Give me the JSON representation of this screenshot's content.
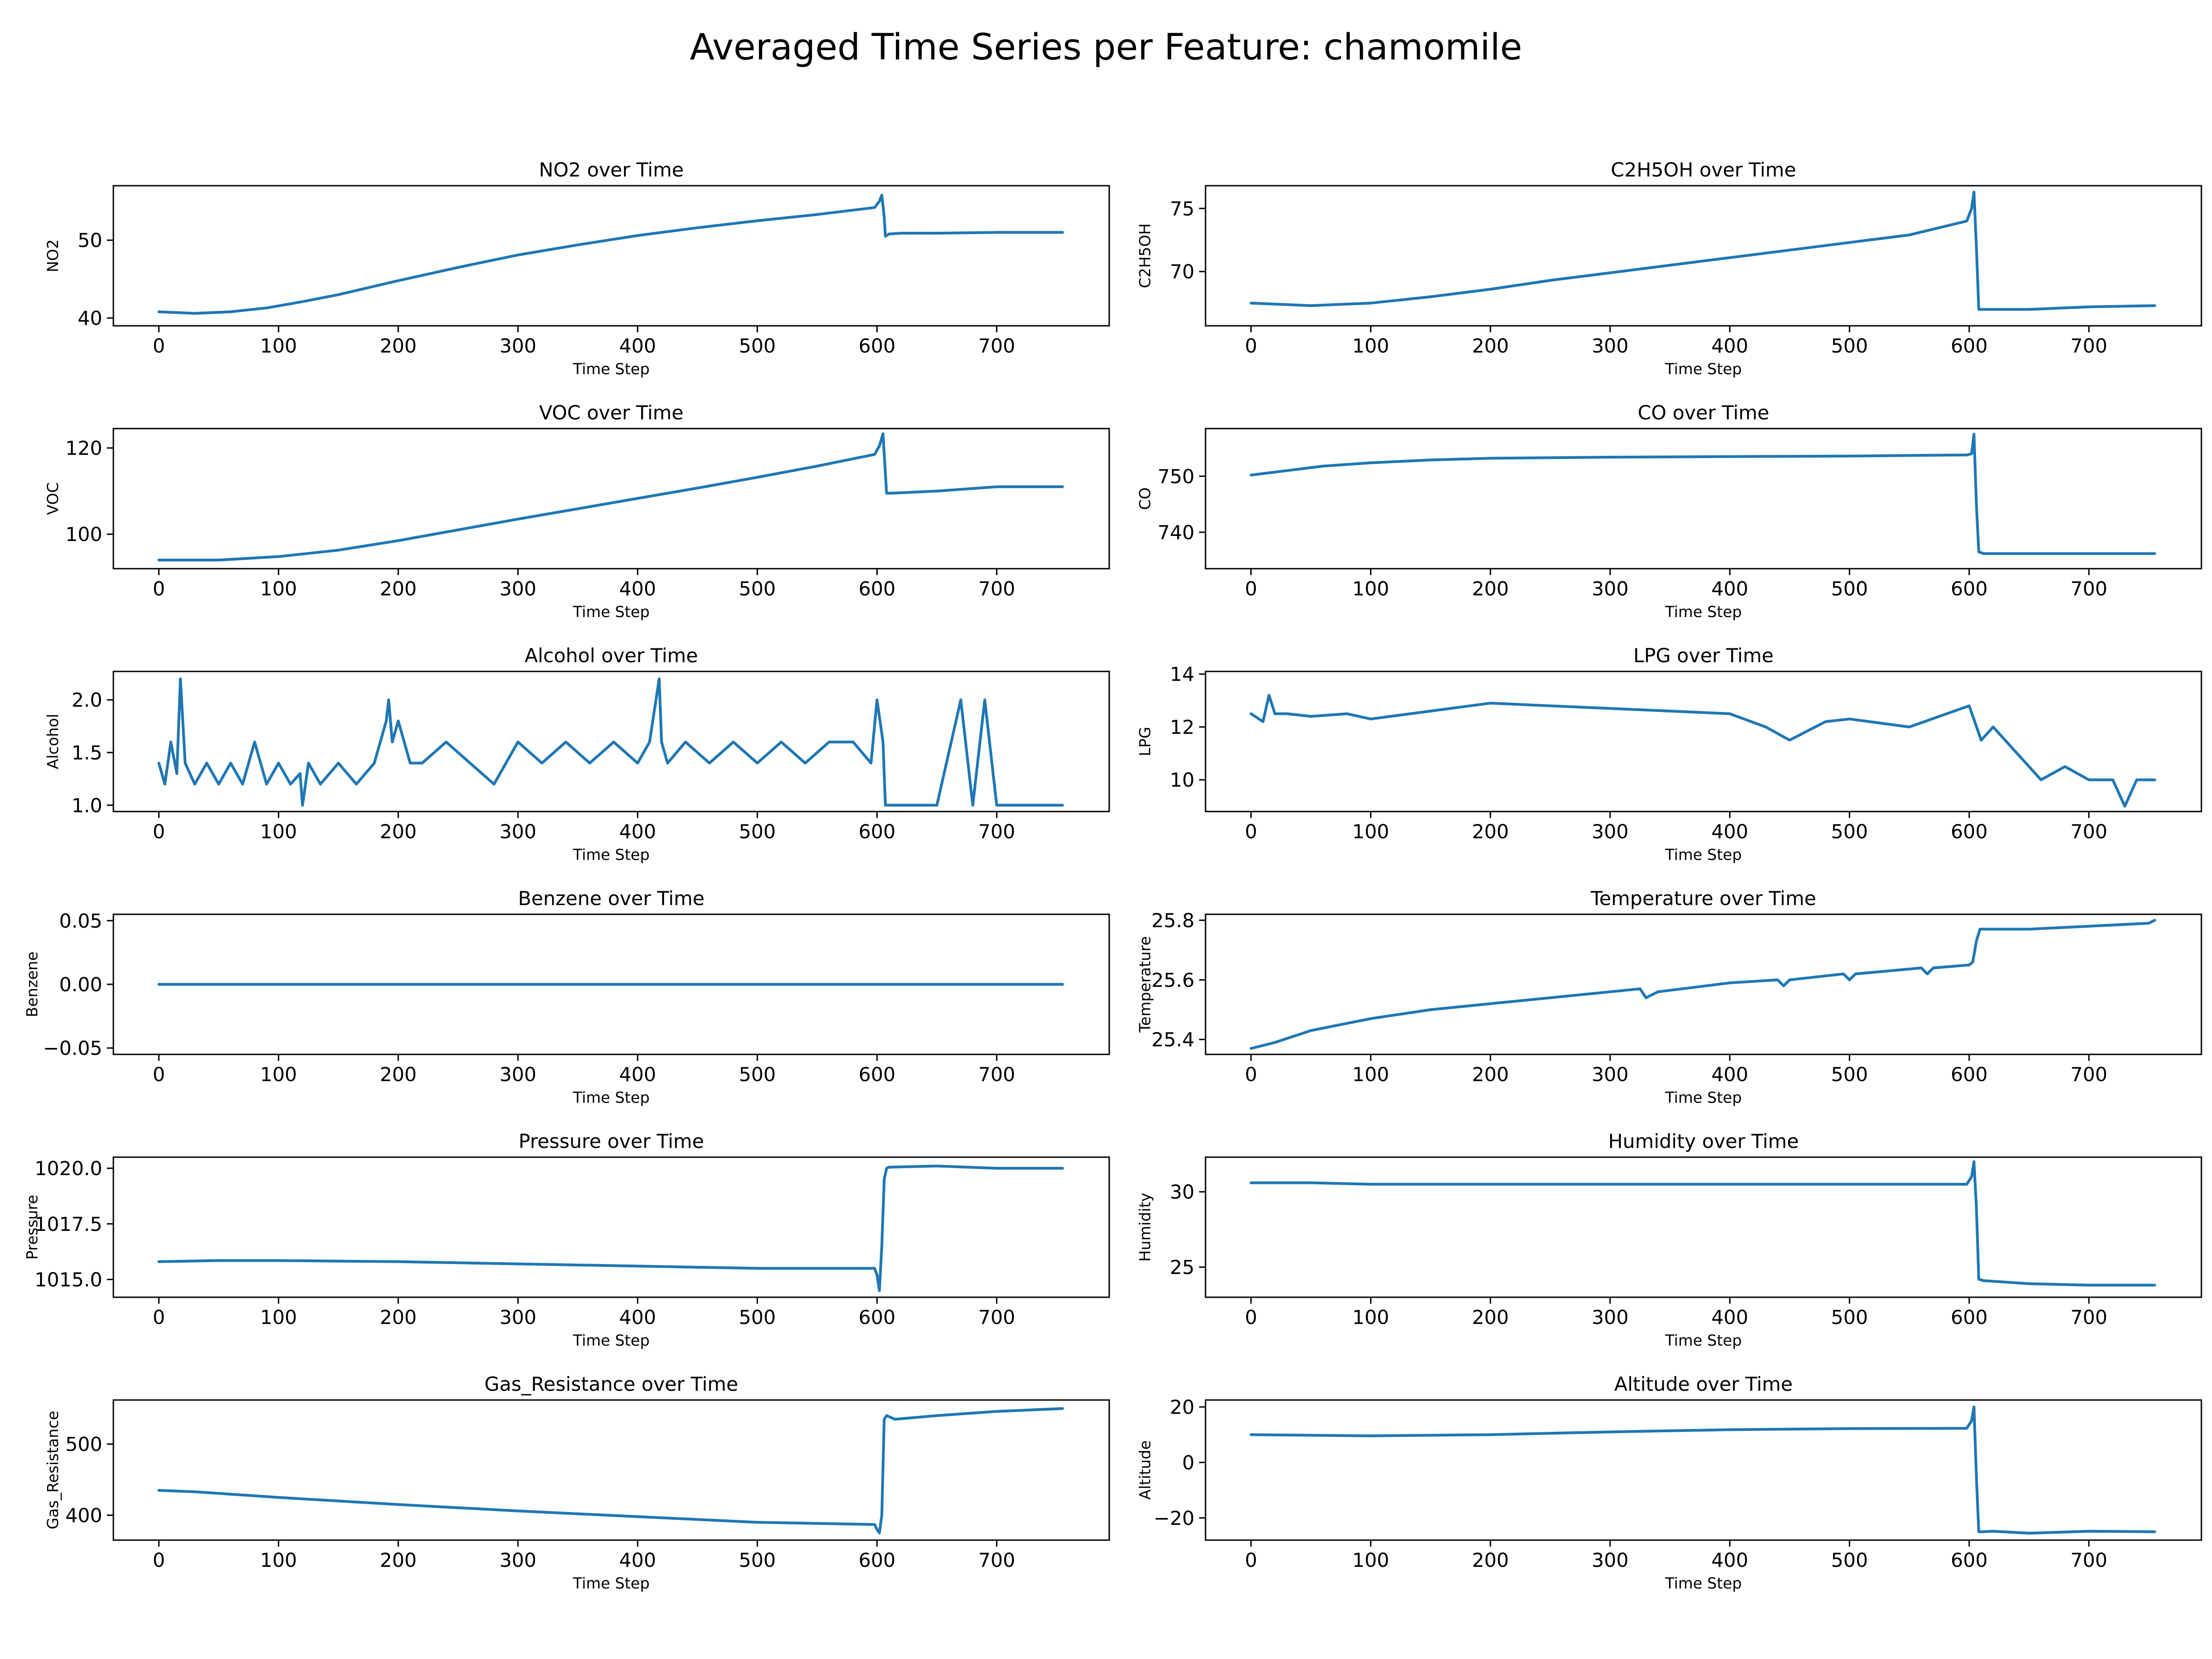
{
  "figure_title": "Averaged Time Series per Feature: chamomile",
  "line_color": "#1f77b4",
  "chart_data": [
    {
      "type": "line",
      "title": "NO2 over Time",
      "xlabel": "Time Step",
      "ylabel": "NO2",
      "xlim": [
        -38,
        794
      ],
      "ylim": [
        39,
        57
      ],
      "xticks": [
        0,
        100,
        200,
        300,
        400,
        500,
        600,
        700
      ],
      "yticks": [
        {
          "v": 40,
          "label": "40"
        },
        {
          "v": 50,
          "label": "50"
        }
      ],
      "x": [
        0,
        30,
        60,
        90,
        120,
        150,
        200,
        250,
        300,
        350,
        400,
        450,
        500,
        550,
        598,
        602,
        604,
        606,
        607,
        610,
        620,
        650,
        700,
        755
      ],
      "y": [
        40.8,
        40.6,
        40.8,
        41.3,
        42.1,
        43.0,
        44.8,
        46.5,
        48.1,
        49.4,
        50.6,
        51.6,
        52.5,
        53.3,
        54.2,
        55.0,
        55.8,
        53.0,
        50.5,
        50.8,
        50.9,
        50.9,
        51.0,
        51.0
      ]
    },
    {
      "type": "line",
      "title": "C2H5OH over Time",
      "xlabel": "Time Step",
      "ylabel": "C2H5OH",
      "xlim": [
        -38,
        794
      ],
      "ylim": [
        65.7,
        76.8
      ],
      "xticks": [
        0,
        100,
        200,
        300,
        400,
        500,
        600,
        700
      ],
      "yticks": [
        {
          "v": 70,
          "label": "70"
        },
        {
          "v": 75,
          "label": "75"
        }
      ],
      "x": [
        0,
        50,
        100,
        150,
        200,
        250,
        300,
        350,
        400,
        450,
        500,
        550,
        598,
        602,
        604,
        606,
        608,
        615,
        650,
        700,
        755
      ],
      "y": [
        67.5,
        67.3,
        67.5,
        68.0,
        68.6,
        69.3,
        69.9,
        70.5,
        71.1,
        71.7,
        72.3,
        72.9,
        74.0,
        75.0,
        76.3,
        72.0,
        67.0,
        67.0,
        67.0,
        67.2,
        67.3
      ]
    },
    {
      "type": "line",
      "title": "VOC over Time",
      "xlabel": "Time Step",
      "ylabel": "VOC",
      "xlim": [
        -38,
        794
      ],
      "ylim": [
        92,
        124.5
      ],
      "xticks": [
        0,
        100,
        200,
        300,
        400,
        500,
        600,
        700
      ],
      "yticks": [
        {
          "v": 100,
          "label": "100"
        },
        {
          "v": 120,
          "label": "120"
        }
      ],
      "x": [
        0,
        50,
        100,
        150,
        200,
        250,
        300,
        350,
        400,
        450,
        500,
        550,
        598,
        602,
        605,
        608,
        612,
        650,
        700,
        755
      ],
      "y": [
        94.0,
        94.0,
        94.8,
        96.3,
        98.5,
        101.0,
        103.5,
        105.9,
        108.3,
        110.7,
        113.2,
        115.8,
        118.5,
        120.5,
        123.3,
        109.5,
        109.5,
        110.0,
        111.0,
        111.0
      ]
    },
    {
      "type": "line",
      "title": "CO over Time",
      "xlabel": "Time Step",
      "ylabel": "CO",
      "xlim": [
        -38,
        794
      ],
      "ylim": [
        733.5,
        758.5
      ],
      "xticks": [
        0,
        100,
        200,
        300,
        400,
        500,
        600,
        700
      ],
      "yticks": [
        {
          "v": 740,
          "label": "740"
        },
        {
          "v": 750,
          "label": "750"
        }
      ],
      "x": [
        0,
        30,
        60,
        100,
        150,
        200,
        300,
        400,
        500,
        598,
        602,
        604,
        606,
        608,
        612,
        650,
        700,
        755
      ],
      "y": [
        750.2,
        751.0,
        751.8,
        752.4,
        752.9,
        753.2,
        753.4,
        753.5,
        753.6,
        753.8,
        754.0,
        757.5,
        745.0,
        736.5,
        736.2,
        736.2,
        736.2,
        736.2
      ]
    },
    {
      "type": "line",
      "title": "Alcohol over Time",
      "xlabel": "Time Step",
      "ylabel": "Alcohol",
      "xlim": [
        -38,
        794
      ],
      "ylim": [
        0.94,
        2.27
      ],
      "xticks": [
        0,
        100,
        200,
        300,
        400,
        500,
        600,
        700
      ],
      "yticks": [
        {
          "v": 1.0,
          "label": "1.0"
        },
        {
          "v": 1.5,
          "label": "1.5"
        },
        {
          "v": 2.0,
          "label": "2.0"
        }
      ],
      "x": [
        0,
        5,
        10,
        15,
        18,
        22,
        30,
        40,
        50,
        60,
        70,
        80,
        90,
        100,
        110,
        118,
        120,
        125,
        135,
        150,
        165,
        180,
        190,
        192,
        195,
        200,
        210,
        220,
        240,
        260,
        280,
        300,
        320,
        340,
        360,
        380,
        400,
        410,
        418,
        420,
        425,
        440,
        460,
        480,
        500,
        520,
        540,
        560,
        580,
        595,
        600,
        605,
        607,
        650,
        670,
        680,
        690,
        700,
        755
      ],
      "y": [
        1.4,
        1.2,
        1.6,
        1.3,
        2.2,
        1.4,
        1.2,
        1.4,
        1.2,
        1.4,
        1.2,
        1.6,
        1.2,
        1.4,
        1.2,
        1.3,
        1.0,
        1.4,
        1.2,
        1.4,
        1.2,
        1.4,
        1.8,
        2.0,
        1.6,
        1.8,
        1.4,
        1.4,
        1.6,
        1.4,
        1.2,
        1.6,
        1.4,
        1.6,
        1.4,
        1.6,
        1.4,
        1.6,
        2.2,
        1.6,
        1.4,
        1.6,
        1.4,
        1.6,
        1.4,
        1.6,
        1.4,
        1.6,
        1.6,
        1.4,
        2.0,
        1.6,
        1.0,
        1.0,
        2.0,
        1.0,
        2.0,
        1.0,
        1.0
      ]
    },
    {
      "type": "line",
      "title": "LPG over Time",
      "xlabel": "Time Step",
      "ylabel": "LPG",
      "xlim": [
        -38,
        794
      ],
      "ylim": [
        8.8,
        14.1
      ],
      "xticks": [
        0,
        100,
        200,
        300,
        400,
        500,
        600,
        700
      ],
      "yticks": [
        {
          "v": 10,
          "label": "10"
        },
        {
          "v": 12,
          "label": "12"
        },
        {
          "v": 14,
          "label": "14"
        }
      ],
      "x": [
        0,
        10,
        15,
        20,
        30,
        50,
        80,
        100,
        150,
        200,
        250,
        300,
        350,
        400,
        430,
        450,
        480,
        500,
        550,
        600,
        610,
        620,
        640,
        650,
        660,
        680,
        700,
        720,
        730,
        740,
        755
      ],
      "y": [
        12.5,
        12.2,
        13.2,
        12.5,
        12.5,
        12.4,
        12.5,
        12.3,
        12.6,
        12.9,
        12.8,
        12.7,
        12.6,
        12.5,
        12.0,
        11.5,
        12.2,
        12.3,
        12.0,
        12.8,
        11.5,
        12.0,
        11.0,
        10.5,
        10.0,
        10.5,
        10.0,
        10.0,
        9.0,
        10.0,
        10.0
      ]
    },
    {
      "type": "line",
      "title": "Benzene over Time",
      "xlabel": "Time Step",
      "ylabel": "Benzene",
      "xlim": [
        -38,
        794
      ],
      "ylim": [
        -0.055,
        0.055
      ],
      "xticks": [
        0,
        100,
        200,
        300,
        400,
        500,
        600,
        700
      ],
      "yticks": [
        {
          "v": -0.05,
          "label": "−0.05"
        },
        {
          "v": 0.0,
          "label": "0.00"
        },
        {
          "v": 0.05,
          "label": "0.05"
        }
      ],
      "x": [
        0,
        755
      ],
      "y": [
        0.0,
        0.0
      ]
    },
    {
      "type": "line",
      "title": "Temperature over Time",
      "xlabel": "Time Step",
      "ylabel": "Temperature",
      "xlim": [
        -38,
        794
      ],
      "ylim": [
        25.35,
        25.82
      ],
      "xticks": [
        0,
        100,
        200,
        300,
        400,
        500,
        600,
        700
      ],
      "yticks": [
        {
          "v": 25.4,
          "label": "25.4"
        },
        {
          "v": 25.6,
          "label": "25.6"
        },
        {
          "v": 25.8,
          "label": "25.8"
        }
      ],
      "x": [
        0,
        20,
        50,
        100,
        150,
        200,
        250,
        300,
        325,
        330,
        340,
        400,
        440,
        445,
        450,
        495,
        500,
        505,
        560,
        565,
        570,
        600,
        603,
        606,
        609,
        612,
        650,
        700,
        750,
        755
      ],
      "y": [
        25.37,
        25.39,
        25.43,
        25.47,
        25.5,
        25.52,
        25.54,
        25.56,
        25.57,
        25.54,
        25.56,
        25.59,
        25.6,
        25.58,
        25.6,
        25.62,
        25.6,
        25.62,
        25.64,
        25.62,
        25.64,
        25.65,
        25.66,
        25.73,
        25.77,
        25.77,
        25.77,
        25.78,
        25.79,
        25.8
      ]
    },
    {
      "type": "line",
      "title": "Pressure over Time",
      "xlabel": "Time Step",
      "ylabel": "Pressure",
      "xlim": [
        -38,
        794
      ],
      "ylim": [
        1014.2,
        1020.5
      ],
      "xticks": [
        0,
        100,
        200,
        300,
        400,
        500,
        600,
        700
      ],
      "yticks": [
        {
          "v": 1015.0,
          "label": "1015.0"
        },
        {
          "v": 1017.5,
          "label": "1017.5"
        },
        {
          "v": 1020.0,
          "label": "1020.0"
        }
      ],
      "x": [
        0,
        50,
        100,
        200,
        300,
        400,
        500,
        598,
        600,
        602,
        604,
        606,
        608,
        610,
        650,
        700,
        755
      ],
      "y": [
        1015.8,
        1015.85,
        1015.85,
        1015.8,
        1015.7,
        1015.6,
        1015.5,
        1015.5,
        1015.2,
        1014.5,
        1016.5,
        1019.5,
        1020.0,
        1020.05,
        1020.1,
        1020.0,
        1020.0
      ]
    },
    {
      "type": "line",
      "title": "Humidity over Time",
      "xlabel": "Time Step",
      "ylabel": "Humidity",
      "xlim": [
        -38,
        794
      ],
      "ylim": [
        23.0,
        32.3
      ],
      "xticks": [
        0,
        100,
        200,
        300,
        400,
        500,
        600,
        700
      ],
      "yticks": [
        {
          "v": 25,
          "label": "25"
        },
        {
          "v": 30,
          "label": "30"
        }
      ],
      "x": [
        0,
        50,
        100,
        200,
        300,
        400,
        500,
        598,
        602,
        604,
        606,
        608,
        612,
        650,
        700,
        755
      ],
      "y": [
        30.6,
        30.6,
        30.5,
        30.5,
        30.5,
        30.5,
        30.5,
        30.5,
        31.0,
        32.0,
        29.0,
        24.2,
        24.1,
        23.9,
        23.8,
        23.8
      ]
    },
    {
      "type": "line",
      "title": "Gas_Resistance over Time",
      "xlabel": "Time Step",
      "ylabel": "Gas_Resistance",
      "xlim": [
        -38,
        794
      ],
      "ylim": [
        365,
        562
      ],
      "xticks": [
        0,
        100,
        200,
        300,
        400,
        500,
        600,
        700
      ],
      "yticks": [
        {
          "v": 400,
          "label": "400"
        },
        {
          "v": 500,
          "label": "500"
        }
      ],
      "x": [
        0,
        30,
        100,
        200,
        300,
        400,
        500,
        598,
        600,
        602,
        604,
        606,
        608,
        615,
        650,
        700,
        755
      ],
      "y": [
        435,
        433,
        425,
        415,
        406,
        398,
        390,
        387,
        380,
        375,
        400,
        535,
        540,
        535,
        540,
        546,
        550
      ]
    },
    {
      "type": "line",
      "title": "Altitude over Time",
      "xlabel": "Time Step",
      "ylabel": "Altitude",
      "xlim": [
        -38,
        794
      ],
      "ylim": [
        -28,
        22.5
      ],
      "xticks": [
        0,
        100,
        200,
        300,
        400,
        500,
        600,
        700
      ],
      "yticks": [
        {
          "v": -20,
          "label": "−20"
        },
        {
          "v": 0,
          "label": "0"
        },
        {
          "v": 20,
          "label": "20"
        }
      ],
      "x": [
        0,
        50,
        100,
        200,
        300,
        400,
        500,
        598,
        602,
        604,
        606,
        608,
        612,
        620,
        650,
        700,
        755
      ],
      "y": [
        10.0,
        9.8,
        9.6,
        10.0,
        11.0,
        11.8,
        12.2,
        12.3,
        15.0,
        20.0,
        -5.0,
        -25.0,
        -25.0,
        -24.8,
        -25.5,
        -24.8,
        -25.0
      ]
    }
  ]
}
